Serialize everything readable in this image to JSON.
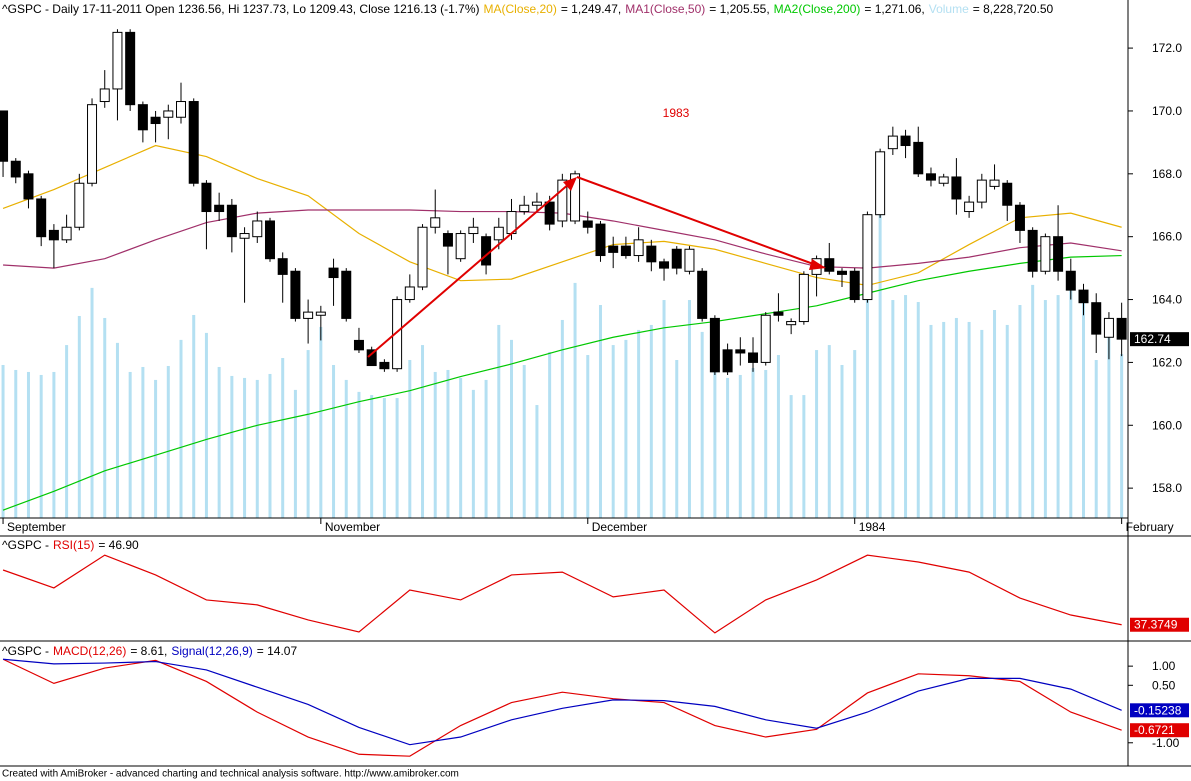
{
  "footer": "Created with AmiBroker - advanced charting and technical analysis software. http://www.amibroker.com",
  "chart_data": [
    {
      "type": "candlestick",
      "title": "^GSPC - Daily 17-11-2011 Open 1236.56, Hi 1237.73, Lo 1209.43, Close 1216.13 (-1.7%)",
      "annotation": "1983",
      "xlim": [
        -0.24,
        88.5
      ],
      "xticks": [
        {
          "value": 0,
          "label": "September"
        },
        {
          "value": 25,
          "label": "November"
        },
        {
          "value": 46,
          "label": "December"
        },
        {
          "value": 67,
          "label": "1984"
        },
        {
          "value": 88,
          "label": "February"
        }
      ],
      "ylim": [
        157.05,
        173.53
      ],
      "yticks": [
        {
          "value": 158,
          "label": "158.0"
        },
        {
          "value": 160,
          "label": "160.0"
        },
        {
          "value": 162,
          "label": "162.0"
        },
        {
          "value": 164,
          "label": "164.0"
        },
        {
          "value": 166,
          "label": "166.0"
        },
        {
          "value": 168,
          "label": "168.0"
        },
        {
          "value": 170,
          "label": "170.0"
        },
        {
          "value": 172,
          "label": "172.0"
        }
      ],
      "candles": {
        "open": [
          170.0,
          168.4,
          168.0,
          167.2,
          166.2,
          165.9,
          166.3,
          167.7,
          170.3,
          170.7,
          172.5,
          170.2,
          169.8,
          169.8,
          169.8,
          170.3,
          167.7,
          167.0,
          167.0,
          165.95,
          166.0,
          166.5,
          165.3,
          164.9,
          163.4,
          163.5,
          165.0,
          164.9,
          162.7,
          162.4,
          162.0,
          161.8,
          164.0,
          164.4,
          166.3,
          166.1,
          165.3,
          166.1,
          166.0,
          165.9,
          166.1,
          166.8,
          167.0,
          167.1,
          166.5,
          166.5,
          166.5,
          166.4,
          165.7,
          165.7,
          165.4,
          165.7,
          165.2,
          165.6,
          164.9,
          164.9,
          163.4,
          162.4,
          162.4,
          162.3,
          162.0,
          163.6,
          163.2,
          163.3,
          164.8,
          165.3,
          164.9,
          164.9,
          164.0,
          166.7,
          168.8,
          169.2,
          169.0,
          168.0,
          167.7,
          167.9,
          166.8,
          167.1,
          167.6,
          167.7,
          167.0,
          166.2,
          164.9,
          166.0,
          164.9,
          164.3,
          163.9,
          162.8,
          163.4
        ],
        "high": [
          170.0,
          168.5,
          168.1,
          167.3,
          166.4,
          166.7,
          168.0,
          170.4,
          171.3,
          172.6,
          172.6,
          170.3,
          170.0,
          170.2,
          170.9,
          170.4,
          167.8,
          167.4,
          167.2,
          166.3,
          166.8,
          166.6,
          165.5,
          165.0,
          164.0,
          163.8,
          165.3,
          165.0,
          163.1,
          162.5,
          162.1,
          164.1,
          164.8,
          166.4,
          167.5,
          166.2,
          166.2,
          166.6,
          166.1,
          166.6,
          167.2,
          167.3,
          167.4,
          167.3,
          168.0,
          168.1,
          166.8,
          166.5,
          166.0,
          166.0,
          166.3,
          165.9,
          165.3,
          165.7,
          165.7,
          165.0,
          163.5,
          162.6,
          162.8,
          162.8,
          163.6,
          164.2,
          163.4,
          164.9,
          165.4,
          165.8,
          165.0,
          165.0,
          166.8,
          168.8,
          169.5,
          169.4,
          169.5,
          168.2,
          168.0,
          168.5,
          167.3,
          168.0,
          168.3,
          167.8,
          167.1,
          166.3,
          166.1,
          167.0,
          165.3,
          164.5,
          164.2,
          163.6,
          163.9
        ],
        "low": [
          167.9,
          167.7,
          166.9,
          165.7,
          165.0,
          165.8,
          166.2,
          167.6,
          170.1,
          169.7,
          170.0,
          169.0,
          169.0,
          169.1,
          169.6,
          167.6,
          165.6,
          166.5,
          165.5,
          163.9,
          165.8,
          165.2,
          163.9,
          163.3,
          162.6,
          162.7,
          163.8,
          163.3,
          162.3,
          161.9,
          161.7,
          161.7,
          163.9,
          164.3,
          166.1,
          164.8,
          165.2,
          165.8,
          164.8,
          165.6,
          165.9,
          166.7,
          166.8,
          166.2,
          166.3,
          166.4,
          166.1,
          165.2,
          165.0,
          165.3,
          165.2,
          164.9,
          164.6,
          164.8,
          164.8,
          163.3,
          161.6,
          161.6,
          161.9,
          161.7,
          161.9,
          163.3,
          162.9,
          163.2,
          164.1,
          164.8,
          164.4,
          163.9,
          163.9,
          166.6,
          168.6,
          168.5,
          167.9,
          167.6,
          167.6,
          166.7,
          166.6,
          166.9,
          167.5,
          166.5,
          165.8,
          164.7,
          164.8,
          164.6,
          164.0,
          163.5,
          162.3,
          162.1,
          162.2
        ],
        "close": [
          168.4,
          167.9,
          167.2,
          166.0,
          165.9,
          166.3,
          167.7,
          170.2,
          170.7,
          172.5,
          170.2,
          169.4,
          169.6,
          170.0,
          170.3,
          167.7,
          166.8,
          166.8,
          166.0,
          166.1,
          166.5,
          165.3,
          164.8,
          163.4,
          163.6,
          163.6,
          164.7,
          163.4,
          162.4,
          161.9,
          161.8,
          164.0,
          164.4,
          166.3,
          166.6,
          165.7,
          166.1,
          166.3,
          165.1,
          166.3,
          166.8,
          167.0,
          167.1,
          166.4,
          167.8,
          168.0,
          166.3,
          165.4,
          165.5,
          165.4,
          165.9,
          165.2,
          165.0,
          165.0,
          165.6,
          163.4,
          161.7,
          161.7,
          162.3,
          162.0,
          163.5,
          163.5,
          163.3,
          164.8,
          165.3,
          164.9,
          164.8,
          164.0,
          166.7,
          168.7,
          169.2,
          168.9,
          168.0,
          167.8,
          167.9,
          167.2,
          167.1,
          167.8,
          167.8,
          167.0,
          166.2,
          164.9,
          166.0,
          164.9,
          164.3,
          163.9,
          162.9,
          163.4,
          162.74
        ]
      },
      "line_x": [
        0,
        4,
        8,
        12,
        16,
        20,
        24,
        28,
        32,
        36,
        40,
        44,
        48,
        52,
        56,
        60,
        64,
        68,
        72,
        76,
        80,
        84,
        88
      ],
      "series": [
        {
          "name": "MA(Close,20)",
          "color": "#e8b000",
          "readout": "= 1,249.47,",
          "values": [
            166.9,
            167.5,
            168.2,
            168.9,
            168.55,
            167.85,
            167.3,
            166.1,
            165.2,
            164.6,
            164.65,
            165.2,
            165.75,
            165.85,
            165.6,
            165.15,
            164.7,
            164.45,
            164.85,
            165.75,
            166.6,
            166.75,
            166.3
          ]
        },
        {
          "name": "MA1(Close,50)",
          "color": "#a0306a",
          "readout": "= 1,205.55,",
          "values": [
            165.1,
            165.0,
            165.3,
            165.9,
            166.45,
            166.75,
            166.85,
            166.85,
            166.85,
            166.8,
            166.8,
            166.75,
            166.5,
            166.2,
            165.9,
            165.45,
            165.05,
            165.0,
            165.15,
            165.35,
            165.65,
            165.8,
            165.55
          ]
        },
        {
          "name": "MA2(Close,200)",
          "color": "#00c800",
          "readout": "= 1,271.06,",
          "values": [
            157.3,
            157.9,
            158.55,
            159.05,
            159.55,
            160.0,
            160.35,
            160.75,
            161.1,
            161.55,
            161.95,
            162.4,
            162.8,
            163.1,
            163.3,
            163.55,
            163.8,
            164.2,
            164.6,
            164.9,
            165.15,
            165.35,
            165.4
          ]
        }
      ],
      "volume": {
        "name": "Volume",
        "color": "#b4e0f2",
        "readout": "= 8,228,720.50",
        "vlim": [
          0,
          26000000
        ],
        "values": [
          7680000,
          7430000,
          7330000,
          7180000,
          7330000,
          8680000,
          10140000,
          11550000,
          10040000,
          8790000,
          7330000,
          7580000,
          6930000,
          7630000,
          8940000,
          10190000,
          9290000,
          7580000,
          7130000,
          7030000,
          6930000,
          7230000,
          8030000,
          6430000,
          8430000,
          9590000,
          7680000,
          6930000,
          6330000,
          6170000,
          6020000,
          6020000,
          7930000,
          8680000,
          7330000,
          7430000,
          7030000,
          6430000,
          6930000,
          9690000,
          8940000,
          7680000,
          5670000,
          8330000,
          9940000,
          11800000,
          8180000,
          10690000,
          8680000,
          8940000,
          9440000,
          9690000,
          10940000,
          7930000,
          10940000,
          9340000,
          8680000,
          7030000,
          7180000,
          7530000,
          7430000,
          8180000,
          6170000,
          6170000,
          8430000,
          8680000,
          7680000,
          8430000,
          11190000,
          15210000,
          10940000,
          11190000,
          10840000,
          9690000,
          9840000,
          10040000,
          9840000,
          9440000,
          10440000,
          9690000,
          10690000,
          11700000,
          10940000,
          11190000,
          11450000,
          11190000,
          7930000,
          9440000,
          8228720.5
        ]
      }
    },
    {
      "type": "line",
      "title": "^GSPC -",
      "xlim": [
        -0.24,
        88.5
      ],
      "ylim": [
        30.9,
        74.6
      ],
      "x": [
        0,
        4,
        8,
        12,
        16,
        20,
        24,
        28,
        32,
        36,
        40,
        44,
        48,
        52,
        56,
        60,
        64,
        68,
        72,
        76,
        80,
        84,
        88
      ],
      "series": [
        {
          "name": "RSI(15)",
          "color": "#e00000",
          "readout": "= 46.90",
          "values": [
            60.6,
            53.0,
            66.9,
            58.5,
            47.9,
            45.8,
            39.4,
            34.3,
            52.1,
            47.9,
            58.5,
            59.7,
            49.2,
            52.1,
            33.9,
            47.9,
            56.4,
            66.9,
            64.0,
            59.7,
            48.7,
            41.5,
            37.3749
          ]
        }
      ]
    },
    {
      "type": "line",
      "title": "^GSPC -",
      "xlim": [
        -0.24,
        88.5
      ],
      "ylim": [
        -1.58,
        1.63
      ],
      "yticks": [
        {
          "value": 1,
          "label": "1.00"
        },
        {
          "value": 0.5,
          "label": "0.50"
        },
        {
          "value": -1,
          "label": "-1.00"
        }
      ],
      "x": [
        0,
        4,
        8,
        12,
        16,
        20,
        24,
        28,
        32,
        36,
        40,
        44,
        48,
        52,
        56,
        60,
        64,
        68,
        72,
        76,
        80,
        84,
        88
      ],
      "series": [
        {
          "name": "MACD(12,26)",
          "color": "#e00000",
          "readout": "= 8.61,",
          "values": [
            1.18,
            0.55,
            0.95,
            1.15,
            0.6,
            -0.2,
            -0.85,
            -1.3,
            -1.35,
            -0.55,
            0.05,
            0.32,
            0.15,
            0.05,
            -0.55,
            -0.85,
            -0.65,
            0.3,
            0.8,
            0.75,
            0.6,
            -0.2,
            -0.6721
          ]
        },
        {
          "name": "Signal(12,26,9)",
          "color": "#0000c0",
          "readout": "= 14.07",
          "values": [
            1.18,
            1.06,
            1.08,
            1.12,
            0.9,
            0.45,
            0.0,
            -0.6,
            -1.05,
            -0.85,
            -0.4,
            -0.1,
            0.12,
            0.1,
            -0.05,
            -0.4,
            -0.62,
            -0.2,
            0.35,
            0.68,
            0.68,
            0.4,
            -0.15238
          ]
        }
      ]
    }
  ]
}
